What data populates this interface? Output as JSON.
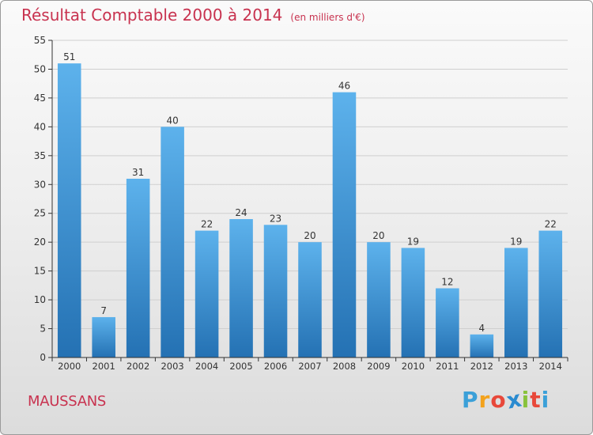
{
  "chart_data": {
    "type": "bar",
    "title": "Résultat Comptable 2000 à 2014",
    "subtitle": "(en milliers d'€)",
    "xlabel": "",
    "ylabel": "",
    "categories": [
      "2000",
      "2001",
      "2002",
      "2003",
      "2004",
      "2005",
      "2006",
      "2007",
      "2008",
      "2009",
      "2010",
      "2011",
      "2012",
      "2013",
      "2014"
    ],
    "values": [
      51,
      7,
      31,
      40,
      22,
      24,
      23,
      20,
      46,
      20,
      19,
      12,
      4,
      19,
      22
    ],
    "ylim": [
      0,
      55
    ],
    "yticks": [
      0,
      5,
      10,
      15,
      20,
      25,
      30,
      35,
      40,
      45,
      50,
      55
    ],
    "grid": true,
    "legend": "none"
  },
  "commune": "MAUSSANS",
  "logo": {
    "letters": [
      "P",
      "r",
      "o",
      "x",
      "i",
      "t",
      "i"
    ],
    "colors": [
      "#3ba0d8",
      "#f3a21c",
      "#e8483a",
      "#2a8bd0",
      "#88c23b",
      "#e8483a",
      "#3ba0d8"
    ]
  },
  "colors": {
    "accent": "#c8324f",
    "bar_top": "#5db2ec",
    "bar_bottom": "#2471b3",
    "grid": "#cfcfcf",
    "axis": "#333333"
  }
}
